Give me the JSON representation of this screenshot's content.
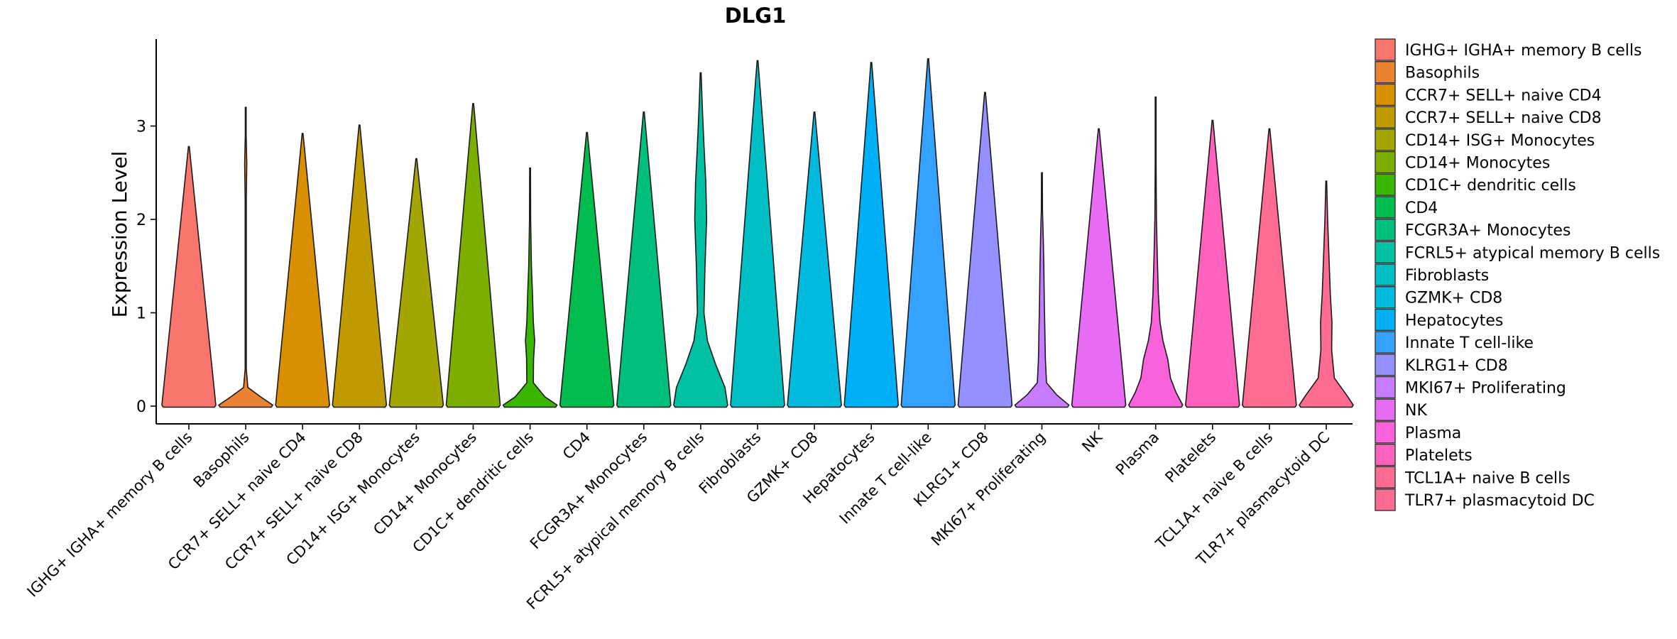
{
  "chart_data": {
    "type": "violin",
    "title": "DLG1",
    "xlabel": "",
    "ylabel": "Expression Level",
    "ylim": [
      -0.18,
      3.9
    ],
    "yticks": [
      0,
      1,
      2,
      3
    ],
    "legend_position": "right",
    "categories": [
      "IGHG+ IGHA+ memory B cells",
      "Basophils",
      "CCR7+ SELL+ naive CD4",
      "CCR7+ SELL+ naive CD8",
      "CD14+ ISG+ Monocytes",
      "CD14+ Monocytes",
      "CD1C+ dendritic cells",
      "CD4",
      "FCGR3A+ Monocytes",
      "FCRL5+ atypical memory B cells",
      "Fibroblasts",
      "GZMK+ CD8",
      "Hepatocytes",
      "Innate T cell-like",
      "KLRG1+ CD8",
      "MKI67+ Proliferating",
      "NK",
      "Plasma",
      "Platelets",
      "TCL1A+ naive B cells",
      "TLR7+ plasmacytoid DC"
    ],
    "legend_labels": [
      " IGHG+ IGHA+ memory B cells",
      "Basophils",
      "CCR7+ SELL+ naive CD4",
      "CCR7+ SELL+ naive CD8",
      "CD14+ ISG+ Monocytes",
      "CD14+ Monocytes",
      "CD1C+ dendritic cells",
      "CD4",
      "FCGR3A+ Monocytes",
      "FCRL5+ atypical memory B cells",
      "Fibroblasts",
      "GZMK+ CD8",
      "Hepatocytes",
      "Innate T cell-like",
      "KLRG1+ CD8",
      "MKI67+ Proliferating",
      "NK",
      "Plasma",
      "Platelets",
      "TCL1A+ naive B cells",
      "TLR7+ plasmacytoid DC"
    ],
    "colors": [
      "#F8766D",
      "#EA8331",
      "#D89000",
      "#C09B00",
      "#A3A500",
      "#7CAE00",
      "#39B600",
      "#00BB4E",
      "#00BF7D",
      "#00C1A3",
      "#00BFC4",
      "#00BAE0",
      "#00B0F6",
      "#35A2FF",
      "#9590FF",
      "#C77CFF",
      "#E76BF3",
      "#FA62DB",
      "#FF62BC",
      "#FF6C91",
      "#FF6C91"
    ],
    "violins": [
      {
        "max": 2.78,
        "profile": [
          [
            0,
            1
          ]
        ]
      },
      {
        "max": 3.2,
        "profile": [
          [
            0,
            1
          ],
          [
            0.1,
            0.55
          ],
          [
            0.2,
            0.08
          ],
          [
            0.4,
            0.02
          ],
          [
            2.2,
            0.02
          ],
          [
            2.6,
            0.04
          ],
          [
            2.9,
            0.015
          ]
        ]
      },
      {
        "max": 2.92,
        "profile": [
          [
            0,
            1
          ]
        ]
      },
      {
        "max": 3.01,
        "profile": [
          [
            0,
            1
          ]
        ]
      },
      {
        "max": 2.65,
        "profile": [
          [
            0,
            1
          ]
        ]
      },
      {
        "max": 3.24,
        "profile": [
          [
            0,
            1
          ]
        ]
      },
      {
        "max": 2.55,
        "profile": [
          [
            0,
            1
          ],
          [
            0.1,
            0.55
          ],
          [
            0.25,
            0.12
          ],
          [
            0.5,
            0.13
          ],
          [
            0.7,
            0.17
          ],
          [
            0.9,
            0.12
          ],
          [
            1.2,
            0.09
          ],
          [
            1.5,
            0.05
          ],
          [
            2.0,
            0.02
          ]
        ]
      },
      {
        "max": 2.93,
        "profile": [
          [
            0,
            1
          ]
        ]
      },
      {
        "max": 3.15,
        "profile": [
          [
            0,
            1
          ]
        ]
      },
      {
        "max": 3.57,
        "profile": [
          [
            0,
            1
          ],
          [
            0.2,
            0.9
          ],
          [
            0.45,
            0.55
          ],
          [
            0.7,
            0.25
          ],
          [
            1.0,
            0.12
          ],
          [
            1.5,
            0.16
          ],
          [
            2.0,
            0.22
          ],
          [
            2.4,
            0.19
          ],
          [
            2.8,
            0.12
          ],
          [
            3.2,
            0.06
          ]
        ]
      },
      {
        "max": 3.7,
        "profile": [
          [
            0,
            1
          ]
        ]
      },
      {
        "max": 3.15,
        "profile": [
          [
            0,
            1
          ]
        ]
      },
      {
        "max": 3.68,
        "profile": [
          [
            0,
            1
          ]
        ]
      },
      {
        "max": 3.72,
        "profile": [
          [
            0,
            1
          ]
        ]
      },
      {
        "max": 3.36,
        "profile": [
          [
            0,
            1
          ]
        ]
      },
      {
        "max": 2.5,
        "profile": [
          [
            0,
            1
          ],
          [
            0.12,
            0.55
          ],
          [
            0.25,
            0.17
          ],
          [
            0.5,
            0.13
          ],
          [
            0.8,
            0.11
          ],
          [
            1.1,
            0.09
          ],
          [
            1.5,
            0.07
          ],
          [
            1.8,
            0.05
          ],
          [
            2.1,
            0.02
          ]
        ]
      },
      {
        "max": 2.97,
        "profile": [
          [
            0,
            1
          ]
        ]
      },
      {
        "max": 3.31,
        "profile": [
          [
            0,
            1
          ],
          [
            0.15,
            0.75
          ],
          [
            0.3,
            0.55
          ],
          [
            0.5,
            0.45
          ],
          [
            0.7,
            0.27
          ],
          [
            0.9,
            0.16
          ],
          [
            1.2,
            0.1
          ],
          [
            1.6,
            0.06
          ],
          [
            2.0,
            0.03
          ],
          [
            2.6,
            0.015
          ]
        ]
      },
      {
        "max": 3.06,
        "profile": [
          [
            0,
            1
          ]
        ]
      },
      {
        "max": 2.97,
        "profile": [
          [
            0,
            1
          ]
        ]
      },
      {
        "max": 2.41,
        "profile": [
          [
            0,
            1
          ],
          [
            0.12,
            0.75
          ],
          [
            0.3,
            0.3
          ],
          [
            0.6,
            0.2
          ],
          [
            0.9,
            0.21
          ],
          [
            1.2,
            0.15
          ],
          [
            1.6,
            0.1
          ],
          [
            2.0,
            0.05
          ]
        ]
      }
    ]
  }
}
